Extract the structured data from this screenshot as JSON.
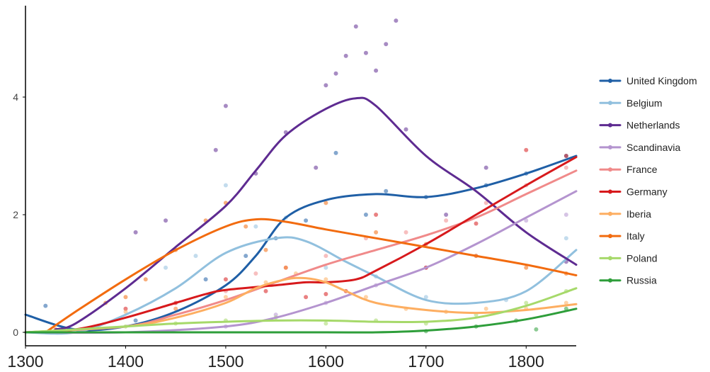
{
  "chart_data": {
    "type": "line",
    "title": "",
    "xlabel": "",
    "ylabel": "",
    "xlim": [
      1300,
      1850
    ],
    "ylim": [
      -0.1,
      5.5
    ],
    "x_ticks": [
      1300,
      1400,
      1500,
      1600,
      1700,
      1800
    ],
    "y_ticks": [
      0,
      2,
      4
    ],
    "grid": false,
    "legend_position": "right",
    "legend": [
      "United Kingdom",
      "Belgium",
      "Netherlands",
      "Scandinavia",
      "France",
      "Germany",
      "Iberia",
      "Italy",
      "Poland",
      "Russia"
    ],
    "series": [
      {
        "name": "United Kingdom",
        "color": "#1f5fa6",
        "x": [
          1300,
          1350,
          1400,
          1450,
          1500,
          1530,
          1560,
          1600,
          1650,
          1700,
          1750,
          1800,
          1850
        ],
        "y": [
          0.3,
          0.05,
          0.1,
          0.35,
          0.8,
          1.3,
          1.95,
          2.25,
          2.35,
          2.3,
          2.45,
          2.7,
          3.0
        ],
        "points": [
          [
            1320,
            0.45
          ],
          [
            1410,
            0.2
          ],
          [
            1480,
            0.9
          ],
          [
            1520,
            1.3
          ],
          [
            1550,
            1.6
          ],
          [
            1580,
            1.9
          ],
          [
            1610,
            3.05
          ],
          [
            1640,
            2.0
          ],
          [
            1660,
            2.4
          ],
          [
            1700,
            2.3
          ],
          [
            1760,
            2.5
          ],
          [
            1800,
            2.7
          ],
          [
            1840,
            3.0
          ]
        ]
      },
      {
        "name": "Belgium",
        "color": "#91c0de",
        "x": [
          1300,
          1350,
          1400,
          1450,
          1500,
          1550,
          1580,
          1620,
          1650,
          1700,
          1750,
          1800,
          1850
        ],
        "y": [
          0,
          0,
          0.3,
          0.75,
          1.35,
          1.6,
          1.55,
          1.2,
          0.95,
          0.55,
          0.5,
          0.7,
          1.4
        ],
        "points": [
          [
            1440,
            1.1
          ],
          [
            1470,
            1.3
          ],
          [
            1500,
            2.5
          ],
          [
            1530,
            1.8
          ],
          [
            1560,
            1.95
          ],
          [
            1600,
            1.1
          ],
          [
            1650,
            0.95
          ],
          [
            1700,
            0.6
          ],
          [
            1780,
            0.55
          ],
          [
            1840,
            1.6
          ]
        ]
      },
      {
        "name": "Netherlands",
        "color": "#5e2b91",
        "x": [
          1330,
          1350,
          1400,
          1450,
          1500,
          1530,
          1560,
          1600,
          1630,
          1650,
          1700,
          1750,
          1800,
          1850
        ],
        "y": [
          0.05,
          0.15,
          0.75,
          1.45,
          2.15,
          2.75,
          3.35,
          3.8,
          3.98,
          3.85,
          3.0,
          2.4,
          1.7,
          1.15
        ],
        "points": [
          [
            1410,
            1.7
          ],
          [
            1440,
            1.9
          ],
          [
            1490,
            3.1
          ],
          [
            1500,
            3.85
          ],
          [
            1530,
            2.7
          ],
          [
            1560,
            3.4
          ],
          [
            1590,
            2.8
          ],
          [
            1600,
            4.2
          ],
          [
            1610,
            4.4
          ],
          [
            1620,
            4.7
          ],
          [
            1630,
            5.2
          ],
          [
            1640,
            4.75
          ],
          [
            1650,
            4.45
          ],
          [
            1660,
            4.9
          ],
          [
            1670,
            5.3
          ],
          [
            1680,
            3.45
          ],
          [
            1720,
            2.0
          ],
          [
            1760,
            2.8
          ],
          [
            1840,
            1.2
          ]
        ]
      },
      {
        "name": "Scandinavia",
        "color": "#b494cf",
        "x": [
          1300,
          1400,
          1500,
          1550,
          1600,
          1650,
          1700,
          1750,
          1800,
          1850
        ],
        "y": [
          0,
          0,
          0.1,
          0.25,
          0.5,
          0.8,
          1.1,
          1.5,
          1.95,
          2.4
        ],
        "points": [
          [
            1500,
            0.1
          ],
          [
            1550,
            0.3
          ],
          [
            1600,
            0.5
          ],
          [
            1650,
            0.8
          ],
          [
            1700,
            1.1
          ],
          [
            1750,
            1.3
          ],
          [
            1800,
            1.9
          ],
          [
            1840,
            2.0
          ]
        ]
      },
      {
        "name": "France",
        "color": "#f08a8a",
        "x": [
          1300,
          1400,
          1450,
          1500,
          1550,
          1600,
          1650,
          1700,
          1750,
          1800,
          1850
        ],
        "y": [
          0,
          0.1,
          0.3,
          0.55,
          0.85,
          1.15,
          1.4,
          1.65,
          1.95,
          2.35,
          2.75
        ],
        "points": [
          [
            1450,
            0.4
          ],
          [
            1500,
            0.7
          ],
          [
            1530,
            1.0
          ],
          [
            1560,
            1.1
          ],
          [
            1600,
            1.3
          ],
          [
            1640,
            1.6
          ],
          [
            1680,
            1.7
          ],
          [
            1720,
            1.9
          ],
          [
            1760,
            2.2
          ],
          [
            1800,
            2.5
          ],
          [
            1840,
            2.8
          ]
        ]
      },
      {
        "name": "Germany",
        "color": "#d7191c",
        "x": [
          1300,
          1350,
          1400,
          1450,
          1480,
          1500,
          1550,
          1580,
          1600,
          1630,
          1650,
          1700,
          1750,
          1800,
          1850
        ],
        "y": [
          0,
          0.05,
          0.25,
          0.5,
          0.65,
          0.72,
          0.8,
          0.85,
          0.85,
          0.9,
          1.05,
          1.5,
          2.0,
          2.5,
          2.98
        ],
        "points": [
          [
            1400,
            0.4
          ],
          [
            1450,
            0.5
          ],
          [
            1500,
            0.9
          ],
          [
            1540,
            0.7
          ],
          [
            1580,
            0.6
          ],
          [
            1600,
            0.65
          ],
          [
            1620,
            0.7
          ],
          [
            1650,
            2.0
          ],
          [
            1700,
            1.1
          ],
          [
            1750,
            1.85
          ],
          [
            1800,
            3.1
          ],
          [
            1840,
            3.0
          ]
        ]
      },
      {
        "name": "Iberia",
        "color": "#fdae61",
        "x": [
          1300,
          1400,
          1450,
          1500,
          1530,
          1560,
          1580,
          1600,
          1620,
          1650,
          1700,
          1750,
          1800,
          1850
        ],
        "y": [
          0,
          0.1,
          0.25,
          0.5,
          0.75,
          0.9,
          0.92,
          0.85,
          0.7,
          0.5,
          0.38,
          0.33,
          0.38,
          0.48
        ],
        "points": [
          [
            1400,
            0.35
          ],
          [
            1450,
            0.4
          ],
          [
            1500,
            0.6
          ],
          [
            1540,
            0.85
          ],
          [
            1570,
            1.0
          ],
          [
            1600,
            0.9
          ],
          [
            1640,
            0.6
          ],
          [
            1680,
            0.4
          ],
          [
            1720,
            0.35
          ],
          [
            1760,
            0.4
          ],
          [
            1800,
            0.4
          ],
          [
            1840,
            0.5
          ]
        ]
      },
      {
        "name": "Italy",
        "color": "#f26b0f",
        "x": [
          1320,
          1350,
          1400,
          1450,
          1500,
          1530,
          1560,
          1600,
          1650,
          1700,
          1750,
          1800,
          1850
        ],
        "y": [
          0,
          0.35,
          0.9,
          1.4,
          1.8,
          1.92,
          1.88,
          1.75,
          1.6,
          1.45,
          1.3,
          1.15,
          0.97
        ],
        "points": [
          [
            1330,
            0.05
          ],
          [
            1380,
            0.5
          ],
          [
            1400,
            0.6
          ],
          [
            1420,
            0.9
          ],
          [
            1450,
            1.4
          ],
          [
            1480,
            1.9
          ],
          [
            1500,
            2.2
          ],
          [
            1520,
            1.8
          ],
          [
            1540,
            1.4
          ],
          [
            1560,
            1.1
          ],
          [
            1600,
            2.2
          ],
          [
            1650,
            1.7
          ],
          [
            1700,
            1.5
          ],
          [
            1750,
            1.3
          ],
          [
            1800,
            1.1
          ],
          [
            1840,
            1.0
          ]
        ]
      },
      {
        "name": "Poland",
        "color": "#a6d96a",
        "x": [
          1300,
          1400,
          1450,
          1500,
          1550,
          1600,
          1650,
          1700,
          1750,
          1800,
          1850
        ],
        "y": [
          0,
          0.1,
          0.15,
          0.18,
          0.2,
          0.2,
          0.18,
          0.18,
          0.25,
          0.45,
          0.75
        ],
        "points": [
          [
            1400,
            0.1
          ],
          [
            1450,
            0.15
          ],
          [
            1500,
            0.2
          ],
          [
            1550,
            0.25
          ],
          [
            1600,
            0.15
          ],
          [
            1650,
            0.2
          ],
          [
            1700,
            0.15
          ],
          [
            1750,
            0.3
          ],
          [
            1800,
            0.5
          ],
          [
            1840,
            0.7
          ]
        ]
      },
      {
        "name": "Russia",
        "color": "#2e9e3a",
        "x": [
          1300,
          1400,
          1500,
          1600,
          1650,
          1700,
          1750,
          1800,
          1850
        ],
        "y": [
          0,
          0,
          0,
          0,
          0,
          0.03,
          0.1,
          0.22,
          0.4
        ],
        "points": [
          [
            1700,
            0.02
          ],
          [
            1750,
            0.1
          ],
          [
            1790,
            0.2
          ],
          [
            1810,
            0.05
          ],
          [
            1840,
            0.4
          ]
        ]
      }
    ]
  }
}
